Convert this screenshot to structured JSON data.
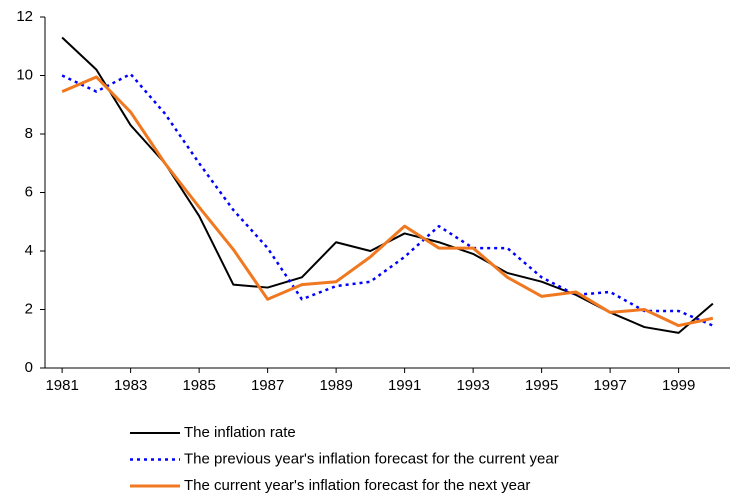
{
  "chart_data": {
    "type": "line",
    "x": [
      1981,
      1982,
      1983,
      1984,
      1985,
      1986,
      1987,
      1988,
      1989,
      1990,
      1991,
      1992,
      1993,
      1994,
      1995,
      1996,
      1997,
      1998,
      1999,
      2000
    ],
    "xlim": [
      1980.5,
      2000.5
    ],
    "xticks": [
      1981,
      1983,
      1985,
      1987,
      1989,
      1991,
      1993,
      1995,
      1997,
      1999
    ],
    "ylim": [
      0,
      12
    ],
    "yticks": [
      0,
      2,
      4,
      6,
      8,
      10,
      12
    ],
    "grid": false,
    "legend": "bottom",
    "series": [
      {
        "name": "The inflation rate",
        "color": "#000000",
        "style": "solid",
        "values": [
          11.3,
          10.2,
          8.3,
          7.0,
          5.2,
          2.85,
          2.75,
          3.1,
          4.3,
          4.0,
          4.6,
          4.3,
          3.9,
          3.25,
          2.95,
          2.5,
          1.9,
          1.4,
          1.2,
          2.2
        ]
      },
      {
        "name": "The previous year's inflation forecast for the current year",
        "color": "#0000ff",
        "style": "dotted",
        "values": [
          10.0,
          9.45,
          10.05,
          8.7,
          7.0,
          5.4,
          4.1,
          2.35,
          2.8,
          2.95,
          3.8,
          4.85,
          4.1,
          4.1,
          3.1,
          2.5,
          2.6,
          1.95,
          1.95,
          1.45
        ]
      },
      {
        "name": "The current year's inflation forecast for the next year",
        "color": "#f07820",
        "style": "thick",
        "values": [
          9.45,
          9.95,
          8.75,
          7.0,
          5.5,
          4.05,
          2.35,
          2.85,
          2.95,
          3.8,
          4.85,
          4.1,
          4.1,
          3.1,
          2.45,
          2.6,
          1.9,
          2.0,
          1.45,
          1.7
        ]
      }
    ]
  }
}
